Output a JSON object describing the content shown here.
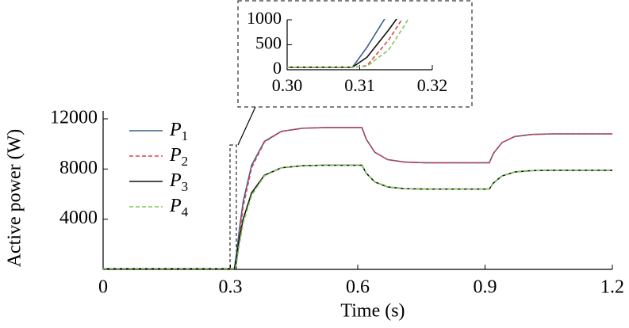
{
  "chart_data": [
    {
      "type": "line",
      "xlabel": "Time (s)",
      "ylabel": "Active power (W)",
      "x": [
        0,
        0.3,
        0.309,
        0.311,
        0.314,
        0.316,
        0.32,
        0.33,
        0.35,
        0.38,
        0.42,
        0.47,
        0.52,
        0.61,
        0.62,
        0.64,
        0.67,
        0.71,
        0.76,
        0.91,
        0.92,
        0.94,
        0.97,
        1.01,
        1.06,
        1.2
      ],
      "series": [
        {
          "name": "P1",
          "color": "#3a5f8f",
          "dash": false,
          "values": [
            50,
            50,
            50,
            450,
            1150,
            1700,
            2900,
            5400,
            8300,
            10200,
            11000,
            11250,
            11300,
            11300,
            10377,
            9343,
            8755,
            8551,
            8500,
            8500,
            9259,
            10108,
            10590,
            10758,
            10800,
            10800
          ]
        },
        {
          "name": "P2",
          "color": "#e0404a",
          "dash": true,
          "values": [
            50,
            50,
            50,
            80,
            600,
            1050,
            2300,
            5000,
            8100,
            10150,
            11000,
            11250,
            11300,
            11300,
            10377,
            9343,
            8755,
            8551,
            8500,
            8500,
            9259,
            10108,
            10590,
            10758,
            10800,
            10800
          ]
        },
        {
          "name": "P3",
          "color": "#111111",
          "dash": false,
          "values": [
            50,
            50,
            50,
            250,
            800,
            1200,
            2200,
            4000,
            6100,
            7500,
            8100,
            8260,
            8300,
            8300,
            7673,
            6972,
            6573,
            6434,
            6400,
            6400,
            6895,
            7449,
            7764,
            7873,
            7900,
            7900
          ]
        },
        {
          "name": "P4",
          "color": "#7ec850",
          "dash": true,
          "values": [
            50,
            50,
            50,
            70,
            400,
            850,
            1800,
            3700,
            5900,
            7450,
            8100,
            8260,
            8300,
            8300,
            7673,
            6972,
            6573,
            6434,
            6400,
            6400,
            6895,
            7449,
            7764,
            7873,
            7900,
            7900
          ]
        }
      ],
      "xlim": [
        0,
        1.2
      ],
      "xticks": [
        0,
        0.3,
        0.6,
        0.9,
        1.2
      ],
      "ylim": [
        0,
        12000
      ],
      "yticks": [
        4000,
        8000,
        12000
      ]
    },
    {
      "type": "line-inset",
      "xlim": [
        0.3,
        0.32
      ],
      "xticks": [
        {
          "value": 0.3,
          "label": "0.30"
        },
        0.31,
        0.32
      ],
      "ylim": [
        0,
        1000
      ],
      "yticks": [
        0,
        500,
        1000
      ]
    }
  ]
}
